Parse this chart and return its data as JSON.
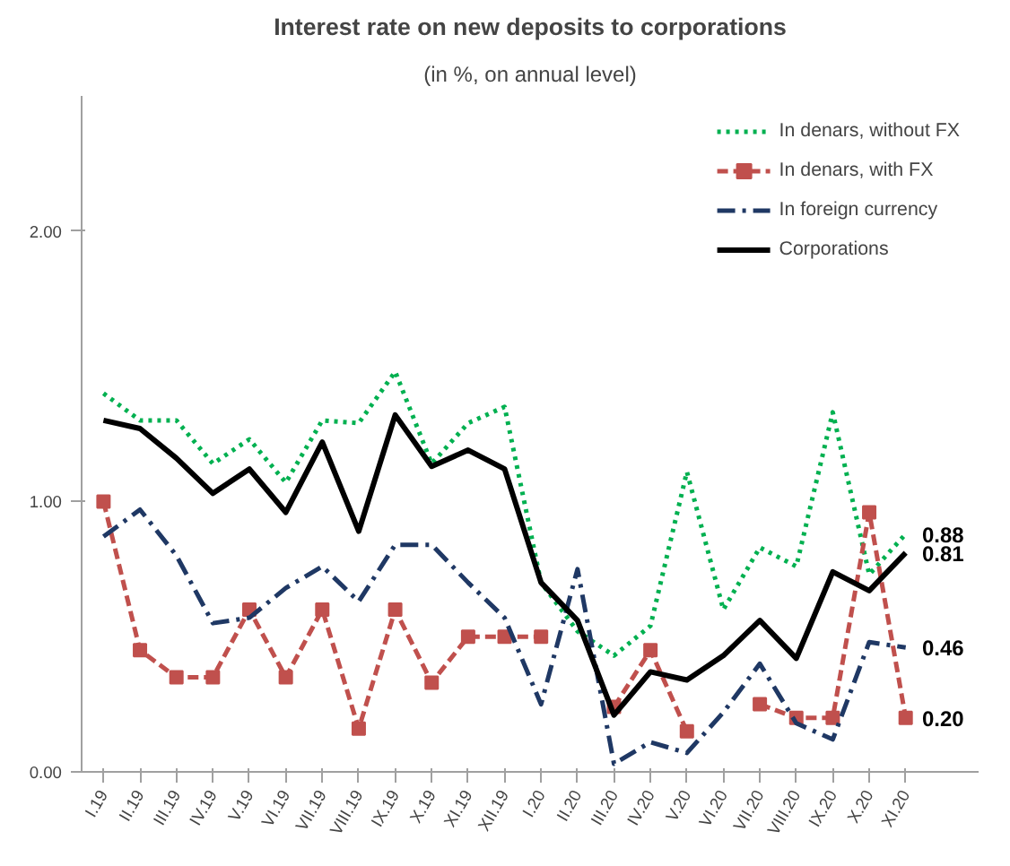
{
  "chart_data": {
    "type": "line",
    "title": "Interest rate on new deposits to corporations",
    "subtitle": "(in %, on annual level)",
    "categories": [
      "I.19",
      "II.19",
      "III.19",
      "IV.19",
      "V.19",
      "VI.19",
      "VII.19",
      "VIII.19",
      "IX.19",
      "X.19",
      "XI.19",
      "XII.19",
      "I.20",
      "II.20",
      "III.20",
      "IV.20",
      "V.20",
      "VI.20",
      "VII.20",
      "VIII.20",
      "IX.20",
      "X.20",
      "XI.20"
    ],
    "ylim": [
      0,
      2.5
    ],
    "yticks": [
      {
        "value": 0,
        "label": "0.00"
      },
      {
        "value": 1,
        "label": "1.00"
      },
      {
        "value": 2,
        "label": "2.00"
      }
    ],
    "grid": false,
    "legend": "top right",
    "series": [
      {
        "name": "In denars, without FX",
        "color": "#00b050",
        "line_style": "dotted",
        "marker": "none",
        "values": [
          1.4,
          1.3,
          1.3,
          1.14,
          1.23,
          1.07,
          1.3,
          1.29,
          1.48,
          1.14,
          1.29,
          1.35,
          0.7,
          0.52,
          0.43,
          0.54,
          1.11,
          0.6,
          0.83,
          0.76,
          1.33,
          0.73,
          0.88
        ],
        "value_labels": [
          null,
          null,
          null,
          null,
          null,
          null,
          null,
          null,
          null,
          null,
          null,
          null,
          null,
          null,
          null,
          null,
          null,
          null,
          null,
          null,
          null,
          null,
          "0.88"
        ]
      },
      {
        "name": "In denars, with FX",
        "color": "#c0504d",
        "line_style": "dashed",
        "marker": "square",
        "values": [
          1.0,
          0.45,
          0.35,
          0.35,
          0.6,
          0.35,
          0.6,
          0.16,
          0.6,
          0.33,
          0.5,
          0.5,
          0.5,
          null,
          0.24,
          0.45,
          0.15,
          null,
          0.25,
          0.2,
          0.2,
          0.96,
          0.2
        ],
        "value_labels": [
          null,
          null,
          null,
          null,
          null,
          null,
          null,
          null,
          null,
          null,
          null,
          null,
          null,
          null,
          null,
          null,
          null,
          null,
          null,
          null,
          null,
          null,
          "0.20"
        ]
      },
      {
        "name": "In foreign currency",
        "color": "#1f3864",
        "line_style": "dashdot",
        "marker": "none",
        "values": [
          0.87,
          0.97,
          0.8,
          0.55,
          0.57,
          0.68,
          0.76,
          0.63,
          0.84,
          0.84,
          0.7,
          0.57,
          0.25,
          0.75,
          0.03,
          0.11,
          0.07,
          0.22,
          0.4,
          0.18,
          0.12,
          0.48,
          0.46
        ],
        "value_labels": [
          null,
          null,
          null,
          null,
          null,
          null,
          null,
          null,
          null,
          null,
          null,
          null,
          null,
          null,
          null,
          null,
          null,
          null,
          null,
          null,
          null,
          null,
          "0.46"
        ]
      },
      {
        "name": "Corporations",
        "color": "#000000",
        "line_style": "solid",
        "marker": "none",
        "values": [
          1.3,
          1.27,
          1.16,
          1.03,
          1.12,
          0.96,
          1.22,
          0.89,
          1.32,
          1.13,
          1.19,
          1.12,
          0.7,
          0.56,
          0.21,
          0.37,
          0.34,
          0.43,
          0.56,
          0.42,
          0.74,
          0.67,
          0.81
        ],
        "value_labels": [
          null,
          null,
          null,
          null,
          null,
          null,
          null,
          null,
          null,
          null,
          null,
          null,
          null,
          null,
          null,
          null,
          null,
          null,
          null,
          null,
          null,
          null,
          "0.81"
        ]
      }
    ]
  }
}
